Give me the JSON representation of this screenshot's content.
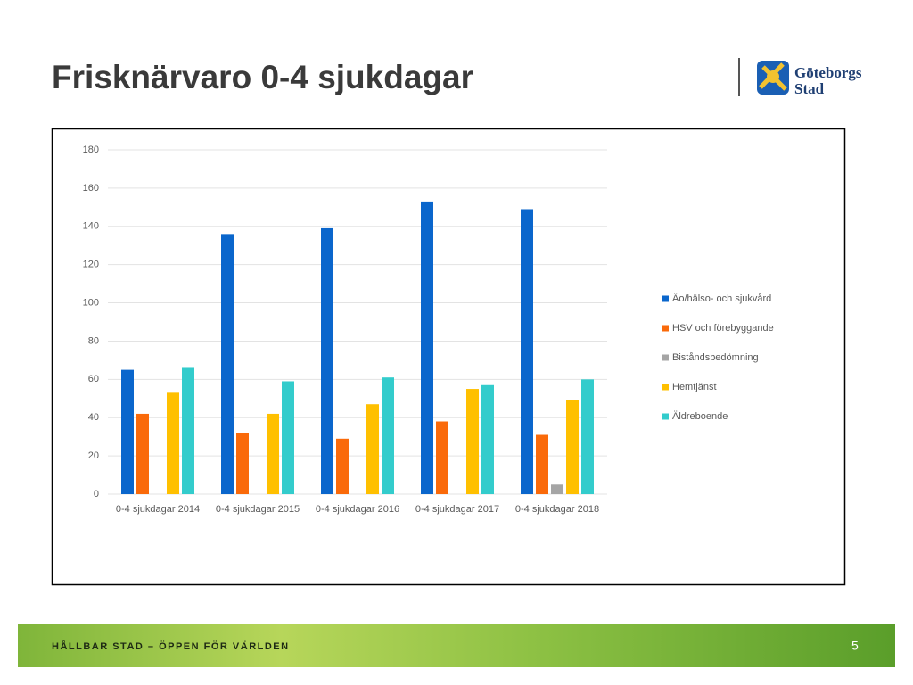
{
  "chart_data": {
    "type": "bar",
    "title": "Frisknärvaro 0-4 sjukdagar",
    "categories": [
      "0-4 sjukdagar 2014",
      "0-4 sjukdagar 2015",
      "0-4 sjukdagar 2016",
      "0-4 sjukdagar 2017",
      "0-4 sjukdagar 2018"
    ],
    "series": [
      {
        "name": "Äo/hälso- och sjukvård",
        "color": "#0a66cc",
        "values": [
          65,
          136,
          139,
          153,
          149
        ]
      },
      {
        "name": "HSV och förebyggande",
        "color": "#fa6a0a",
        "values": [
          42,
          32,
          29,
          38,
          31
        ]
      },
      {
        "name": "Biståndsbedömning",
        "color": "#a5a5a5",
        "values": [
          null,
          null,
          null,
          null,
          5
        ]
      },
      {
        "name": "Hemtjänst",
        "color": "#ffc000",
        "values": [
          53,
          42,
          47,
          55,
          49
        ]
      },
      {
        "name": "Äldreboende",
        "color": "#33cccc",
        "values": [
          66,
          59,
          61,
          57,
          60
        ]
      }
    ],
    "ylim": [
      0,
      180
    ],
    "yticks": [
      0,
      20,
      40,
      60,
      80,
      100,
      120,
      140,
      160,
      180
    ],
    "grid": true,
    "legend": "right"
  },
  "logo": {
    "line1": "Göteborgs",
    "line2": "Stad"
  },
  "footer": {
    "text": "HÅLLBAR STAD – ÖPPEN FÖR VÄRLDEN",
    "page_number": "5"
  }
}
